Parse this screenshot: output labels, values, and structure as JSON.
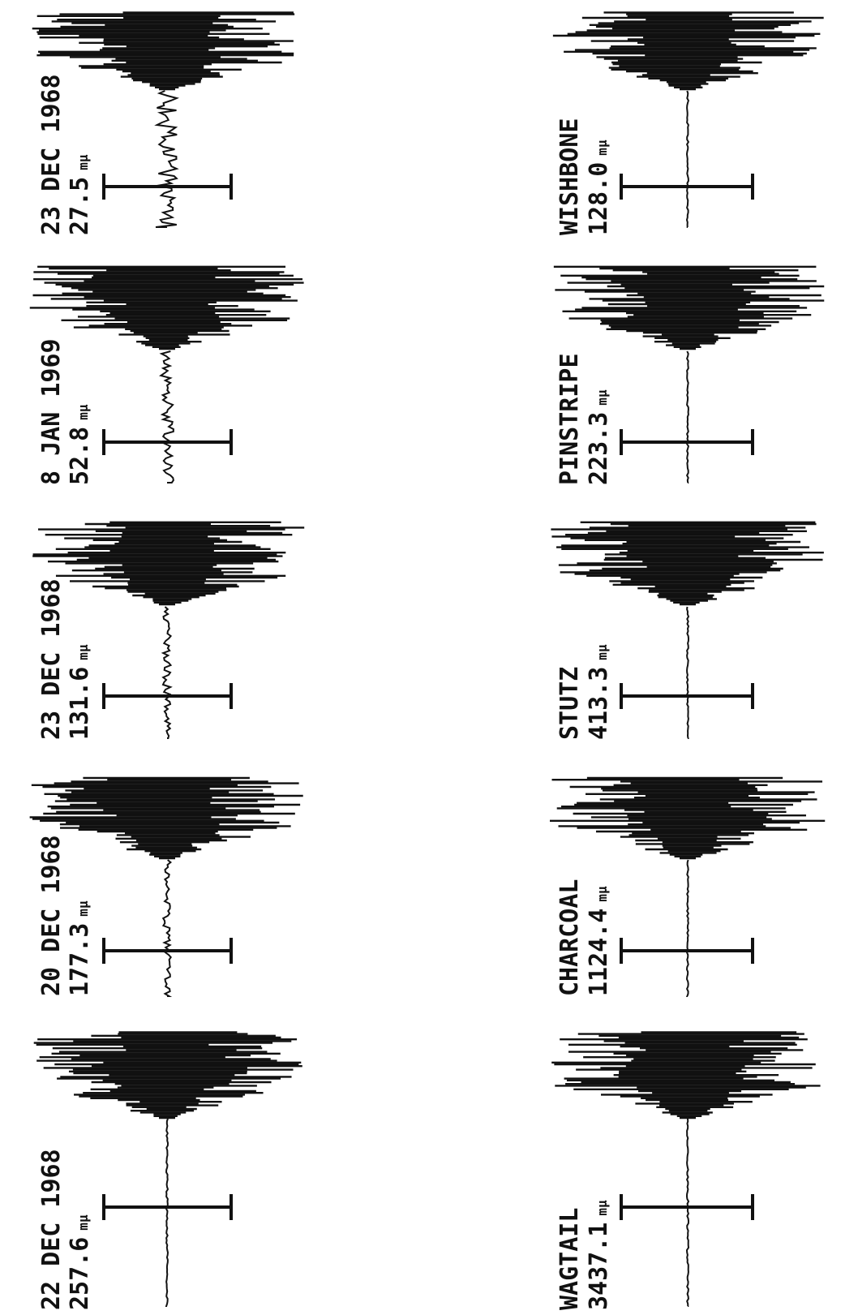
{
  "left_column": [
    {
      "label": "23 DEC 1968",
      "amplitude": "27.5",
      "unit": "mμ"
    },
    {
      "label": "8 JAN 1969",
      "amplitude": "52.8",
      "unit": "mμ"
    },
    {
      "label": "23 DEC 1968",
      "amplitude": "131.6",
      "unit": "mμ"
    },
    {
      "label": "20 DEC 1968",
      "amplitude": "177.3",
      "unit": "mμ"
    },
    {
      "label": "22 DEC 1968",
      "amplitude": "257.6",
      "unit": "mμ"
    }
  ],
  "right_column": [
    {
      "label": "WISHBONE",
      "amplitude": "128.0",
      "unit": "mμ"
    },
    {
      "label": "PINSTRIPE",
      "amplitude": "223.3",
      "unit": "mμ"
    },
    {
      "label": "STUTZ",
      "amplitude": "413.3",
      "unit": "mμ"
    },
    {
      "label": "CHARCOAL",
      "amplitude": "1124.4",
      "unit": "mμ"
    },
    {
      "label": "WAGTAIL",
      "amplitude": "3437.1",
      "unit": "mμ"
    }
  ]
}
